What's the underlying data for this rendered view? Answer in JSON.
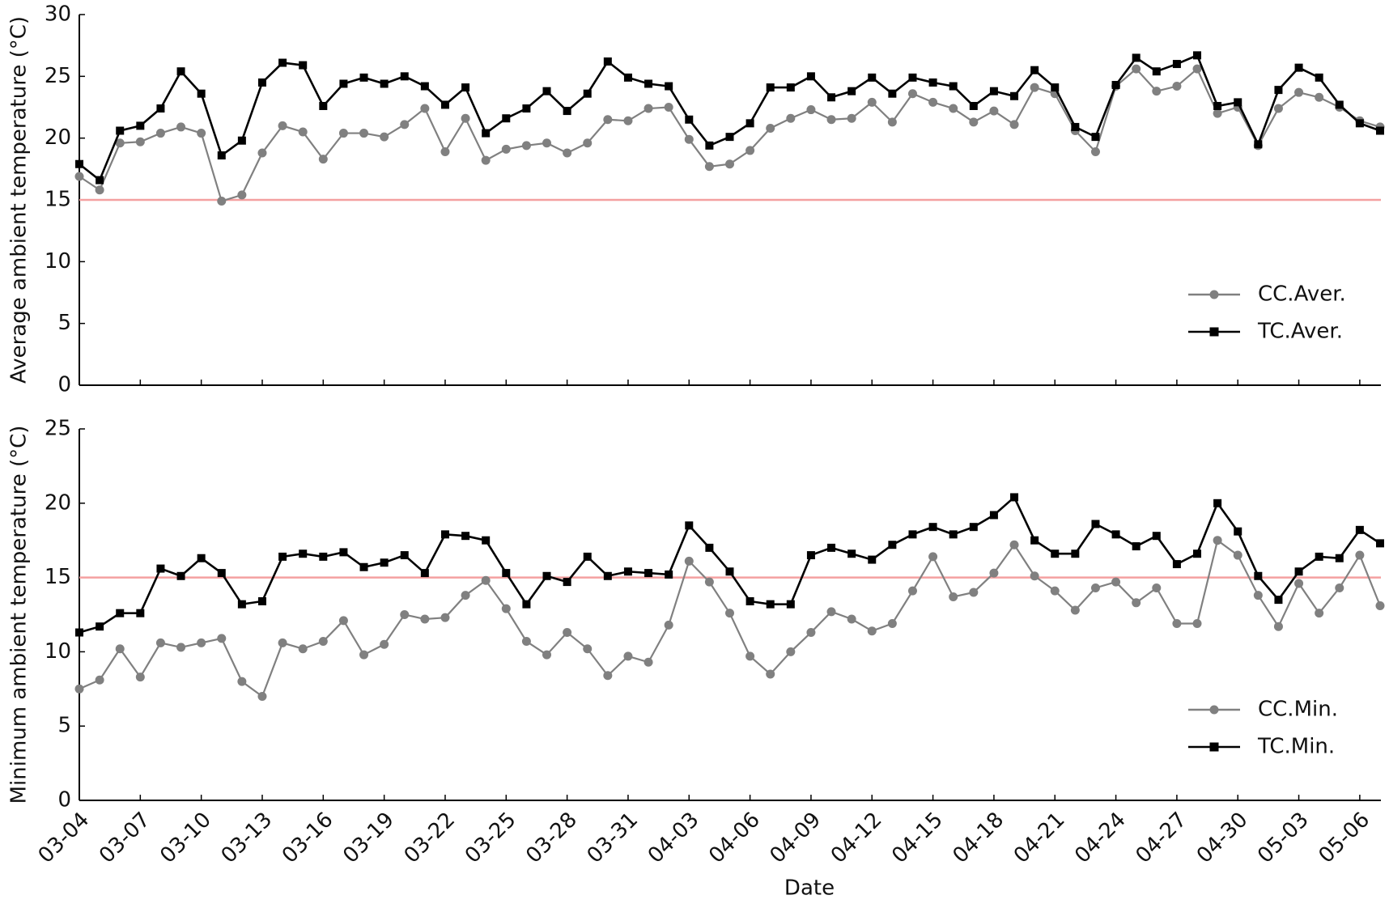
{
  "chart_data": [
    {
      "type": "line",
      "ylabel": "Average ambient temperature (°C)",
      "ylim": [
        0,
        30
      ],
      "yticks": [
        0,
        5,
        10,
        15,
        20,
        25,
        30
      ],
      "reference_line": {
        "value": 15,
        "color": "#f4a0a0"
      },
      "legend": "lower right",
      "series": [
        {
          "name": "CC.Aver.",
          "color": "#808080",
          "marker": "circle",
          "values": [
            16.9,
            15.8,
            19.6,
            19.7,
            20.4,
            20.9,
            20.4,
            14.9,
            15.4,
            18.8,
            21.0,
            20.5,
            18.3,
            20.4,
            20.4,
            20.1,
            21.1,
            22.4,
            18.9,
            21.6,
            18.2,
            19.1,
            19.4,
            19.6,
            18.8,
            19.6,
            21.5,
            21.4,
            22.4,
            22.5,
            19.9,
            17.7,
            17.9,
            19.0,
            20.8,
            21.6,
            22.3,
            21.5,
            21.6,
            22.9,
            21.3,
            23.6,
            22.9,
            22.4,
            21.3,
            22.2,
            21.1,
            24.1,
            23.6,
            20.6,
            18.9,
            24.2,
            25.6,
            23.8,
            24.2,
            25.6,
            22.0,
            22.5,
            19.4,
            22.4,
            23.7,
            23.3,
            22.5,
            21.4,
            20.9
          ]
        },
        {
          "name": "TC.Aver.",
          "color": "#000000",
          "marker": "square",
          "values": [
            17.9,
            16.6,
            20.6,
            21.0,
            22.4,
            25.4,
            23.6,
            18.6,
            19.8,
            24.5,
            26.1,
            25.9,
            22.6,
            24.4,
            24.9,
            24.4,
            25.0,
            24.2,
            22.7,
            24.1,
            20.4,
            21.6,
            22.4,
            23.8,
            22.2,
            23.6,
            26.2,
            24.9,
            24.4,
            24.2,
            21.5,
            19.4,
            20.1,
            21.2,
            24.1,
            24.1,
            25.0,
            23.3,
            23.8,
            24.9,
            23.6,
            24.9,
            24.5,
            24.2,
            22.6,
            23.8,
            23.4,
            25.5,
            24.1,
            20.9,
            20.1,
            24.3,
            26.5,
            25.4,
            26.0,
            26.7,
            22.6,
            22.9,
            19.5,
            23.9,
            25.7,
            24.9,
            22.7,
            21.2,
            20.6
          ]
        }
      ]
    },
    {
      "type": "line",
      "xlabel": "Date",
      "ylabel": "Minimum ambient temperature (°C)",
      "ylim": [
        0,
        25
      ],
      "yticks": [
        0,
        5,
        10,
        15,
        20,
        25
      ],
      "reference_line": {
        "value": 15,
        "color": "#f4a0a0"
      },
      "legend": "lower right",
      "categories": [
        "03-04",
        null,
        null,
        "03-07",
        null,
        null,
        "03-10",
        null,
        null,
        "03-13",
        null,
        null,
        "03-16",
        null,
        null,
        "03-19",
        null,
        null,
        "03-22",
        null,
        null,
        "03-25",
        null,
        null,
        "03-28",
        null,
        null,
        "03-31",
        null,
        null,
        "04-03",
        null,
        null,
        "04-06",
        null,
        null,
        "04-09",
        null,
        null,
        "04-12",
        null,
        null,
        "04-15",
        null,
        null,
        "04-18",
        null,
        null,
        "04-21",
        null,
        null,
        "04-24",
        null,
        null,
        "04-27",
        null,
        null,
        "04-30",
        null,
        null,
        "05-03",
        null,
        null,
        "05-06",
        null
      ],
      "series": [
        {
          "name": "CC.Min.",
          "color": "#808080",
          "marker": "circle",
          "values": [
            7.5,
            8.1,
            10.2,
            8.3,
            10.6,
            10.3,
            10.6,
            10.9,
            8.0,
            7.0,
            10.6,
            10.2,
            10.7,
            12.1,
            9.8,
            10.5,
            12.5,
            12.2,
            12.3,
            13.8,
            14.8,
            12.9,
            10.7,
            9.8,
            11.3,
            10.2,
            8.4,
            9.7,
            9.3,
            11.8,
            16.1,
            14.7,
            12.6,
            9.7,
            8.5,
            10.0,
            11.3,
            12.7,
            12.2,
            11.4,
            11.9,
            14.1,
            16.4,
            13.7,
            14.0,
            15.3,
            17.2,
            15.1,
            14.1,
            12.8,
            14.3,
            14.7,
            13.3,
            14.3,
            11.9,
            11.9,
            17.5,
            16.5,
            13.8,
            11.7,
            14.6,
            12.6,
            14.3,
            16.5,
            13.1
          ]
        },
        {
          "name": "TC.Min.",
          "color": "#000000",
          "marker": "square",
          "values": [
            11.3,
            11.7,
            12.6,
            12.6,
            15.6,
            15.1,
            16.3,
            15.3,
            13.2,
            13.4,
            16.4,
            16.6,
            16.4,
            16.7,
            15.7,
            16.0,
            16.5,
            15.3,
            17.9,
            17.8,
            17.5,
            15.3,
            13.2,
            15.1,
            14.7,
            16.4,
            15.1,
            15.4,
            15.3,
            15.2,
            18.5,
            17.0,
            15.4,
            13.4,
            13.2,
            13.2,
            16.5,
            17.0,
            16.6,
            16.2,
            17.2,
            17.9,
            18.4,
            17.9,
            18.4,
            19.2,
            20.4,
            17.5,
            16.6,
            16.6,
            18.6,
            17.9,
            17.1,
            17.8,
            15.9,
            16.6,
            20.0,
            18.1,
            15.1,
            13.5,
            15.4,
            16.4,
            16.3,
            18.2,
            17.3
          ]
        }
      ]
    }
  ]
}
